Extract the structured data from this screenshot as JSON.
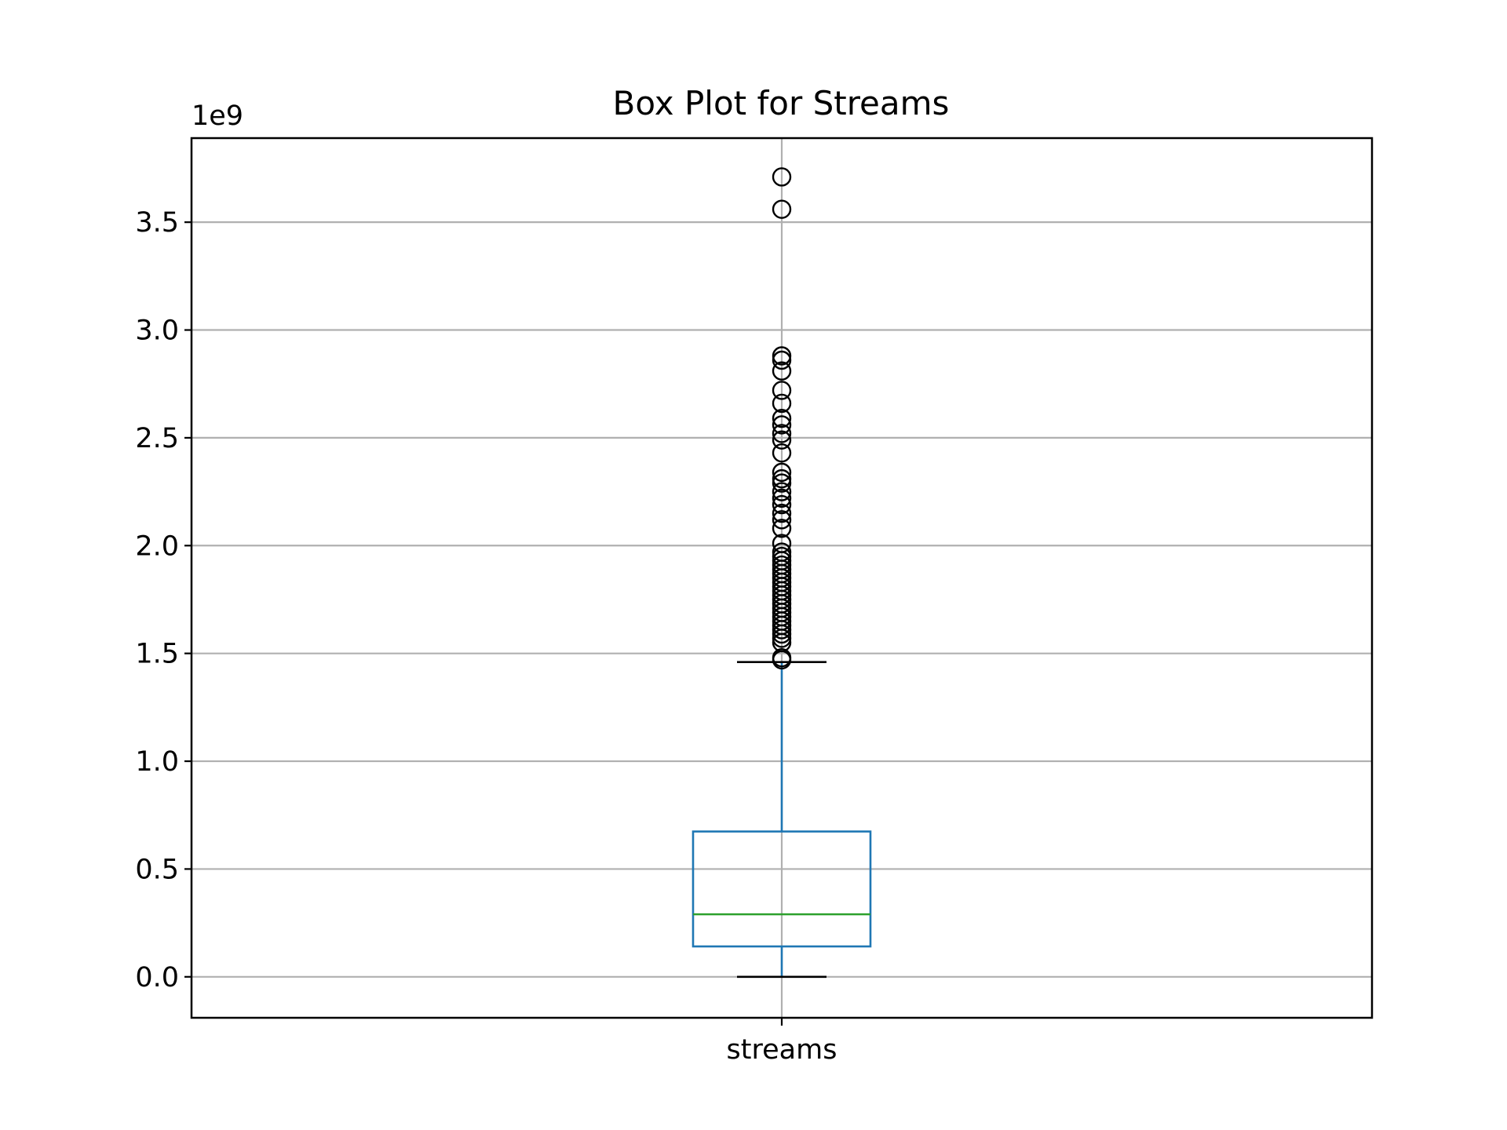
{
  "chart_data": {
    "type": "box",
    "title": "Box Plot for Streams",
    "categories": [
      "streams"
    ],
    "offset_text": "1e9",
    "scale_multiplier": 1000000000,
    "ylim": [
      -0.19,
      3.89
    ],
    "yticks": [
      0.0,
      0.5,
      1.0,
      1.5,
      2.0,
      2.5,
      3.0,
      3.5
    ],
    "ytick_labels": [
      "0.0",
      "0.5",
      "1.0",
      "1.5",
      "2.0",
      "2.5",
      "3.0",
      "3.5"
    ],
    "grid": true,
    "legend": "none",
    "series": [
      {
        "category": "streams",
        "whisker_low": 0.0,
        "q1": 0.141,
        "median": 0.29,
        "q3": 0.674,
        "whisker_high": 1.46,
        "outliers": [
          1.47,
          1.48,
          1.55,
          1.57,
          1.59,
          1.61,
          1.63,
          1.65,
          1.67,
          1.69,
          1.71,
          1.73,
          1.75,
          1.77,
          1.79,
          1.81,
          1.83,
          1.85,
          1.87,
          1.89,
          1.91,
          1.93,
          1.95,
          1.97,
          2.01,
          2.08,
          2.12,
          2.15,
          2.19,
          2.22,
          2.25,
          2.29,
          2.31,
          2.34,
          2.43,
          2.49,
          2.52,
          2.56,
          2.59,
          2.66,
          2.72,
          2.81,
          2.86,
          2.88,
          3.56,
          3.71
        ]
      }
    ],
    "colors": {
      "box": "#1f77b4",
      "median": "#2ca02c",
      "whisker_cap": "#000000",
      "outlier": "#000000",
      "grid": "#b0b0b0",
      "axes": "#000000"
    }
  }
}
